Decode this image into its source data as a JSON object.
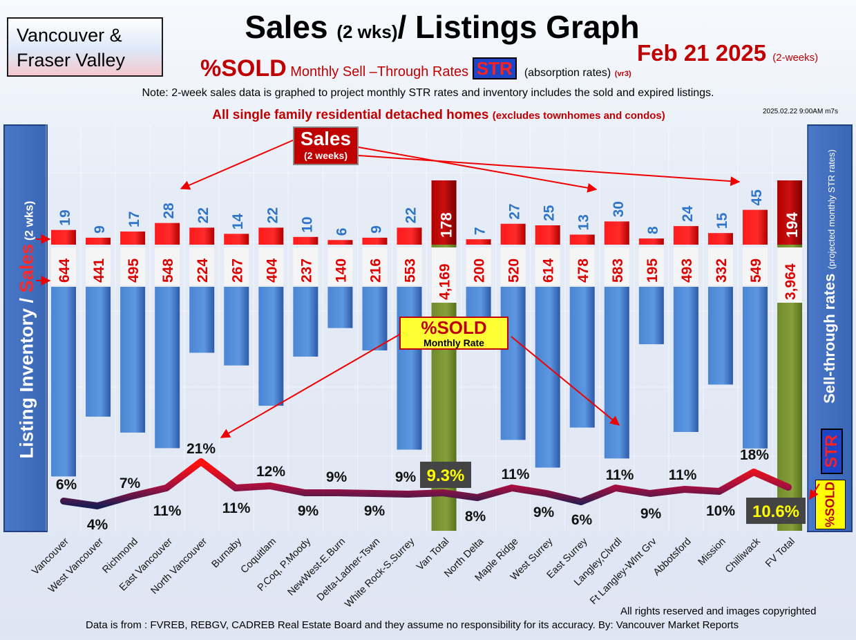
{
  "region_label": [
    "Vancouver &",
    "Fraser Valley"
  ],
  "title": {
    "main": "Sales ",
    "paren": "(2 wks)",
    "rest": "/ Listings Graph"
  },
  "date": {
    "main": "Feb 21  2025",
    "suffix": "(2-weeks)"
  },
  "subtitle": {
    "pct": "%SOLD",
    "text": " Monthly Sell –Through Rates ",
    "str": "STR",
    "absorption": "(absorption rates)",
    "version": "(vr3)"
  },
  "note": "Note: 2-week sales data is graphed to project monthly STR rates and inventory includes the sold and expired listings.",
  "scope": {
    "main": "All single family residential detached homes ",
    "paren": "(excludes townhomes and condos)"
  },
  "timestamp": "2025.02.22 9:00AM m7s",
  "left_axis": {
    "inventory": "Listing Inventory / ",
    "sales": "Sales",
    "paren": " (2 wks)"
  },
  "right_axis": {
    "main": "Sell-through rates  ",
    "paren": "(projected monthly STR rates)"
  },
  "legend_str": "STR",
  "legend_sold": "%SOLD",
  "sales_callout": {
    "main": "Sales",
    "sub": "(2 weeks)"
  },
  "sold_callout": {
    "main": "%SOLD",
    "sub": "Monthly Rate"
  },
  "footer": {
    "rights": "All rights reserved and  images copyrighted",
    "source": "Data is from : FVREB, REBGV, CADREB Real Estate Board and they assume no responsibility for its accuracy. By: Vancouver Market Reports"
  },
  "colors": {
    "sales": "#ff0000",
    "inventory": "#4a86d4",
    "total": "#778a30",
    "line_high": "#ff1010",
    "line_low": "#1c1c52",
    "value_red": "#dd0000",
    "sales_blue": "#2e75c9"
  },
  "chart_data": {
    "type": "bar",
    "categories": [
      "Vancouver",
      "West Vancouver",
      "Richmond",
      "East Vancouver",
      "North Vancouver",
      "Burnaby",
      "Coquitlam",
      "P.Coq, P.Moody",
      "NewWest-E.Burn",
      "Delta-Ladner-Tswn",
      "White Rock-S.Surrey",
      "Van Total",
      "North Delta",
      "Maple Ridge",
      "West Surrey",
      "East Surrey",
      "Langley,Clvrdl",
      "Ft Langley-Wlnt Grv",
      "Abbotsford",
      "Mission",
      "Chilliwack",
      "FV Total"
    ],
    "series": [
      {
        "name": "Sales",
        "values": [
          19,
          9,
          17,
          28,
          22,
          14,
          22,
          10,
          6,
          9,
          22,
          178,
          7,
          27,
          25,
          13,
          30,
          8,
          24,
          15,
          45,
          194
        ],
        "labels": [
          "19",
          "9",
          "17",
          "28",
          "22",
          "14",
          "22",
          "10",
          "6",
          "9",
          "22",
          "178",
          "7",
          "27",
          "25",
          "13",
          "30",
          "8",
          "24",
          "15",
          "45",
          "194"
        ]
      },
      {
        "name": "Listing Inventory",
        "values": [
          644,
          441,
          495,
          548,
          224,
          267,
          404,
          237,
          140,
          216,
          553,
          4169,
          200,
          520,
          614,
          478,
          583,
          195,
          493,
          332,
          549,
          3964
        ],
        "labels": [
          "644",
          "441",
          "495",
          "548",
          "224",
          "267",
          "404",
          "237",
          "140",
          "216",
          "553",
          "4,169",
          "200",
          "520",
          "614",
          "478",
          "583",
          "195",
          "493",
          "332",
          "549",
          "3,964"
        ]
      },
      {
        "name": "%SOLD",
        "type": "line",
        "values": [
          6,
          4,
          7,
          11,
          21,
          11,
          12,
          9,
          9,
          9,
          9,
          9.3,
          8,
          11,
          9,
          6,
          11,
          9,
          11,
          10,
          18,
          10.6
        ],
        "labels": [
          "6%",
          "4%",
          "7%",
          "11%",
          "21%",
          "11%",
          "12%",
          "9%",
          "9%",
          "9%",
          "9%",
          "9.3%",
          "8%",
          "11%",
          "9%",
          "6%",
          "11%",
          "9%",
          "11%",
          "10%",
          "18%",
          "10.6%"
        ]
      }
    ],
    "totals": [
      "Van Total",
      "FV Total"
    ]
  }
}
